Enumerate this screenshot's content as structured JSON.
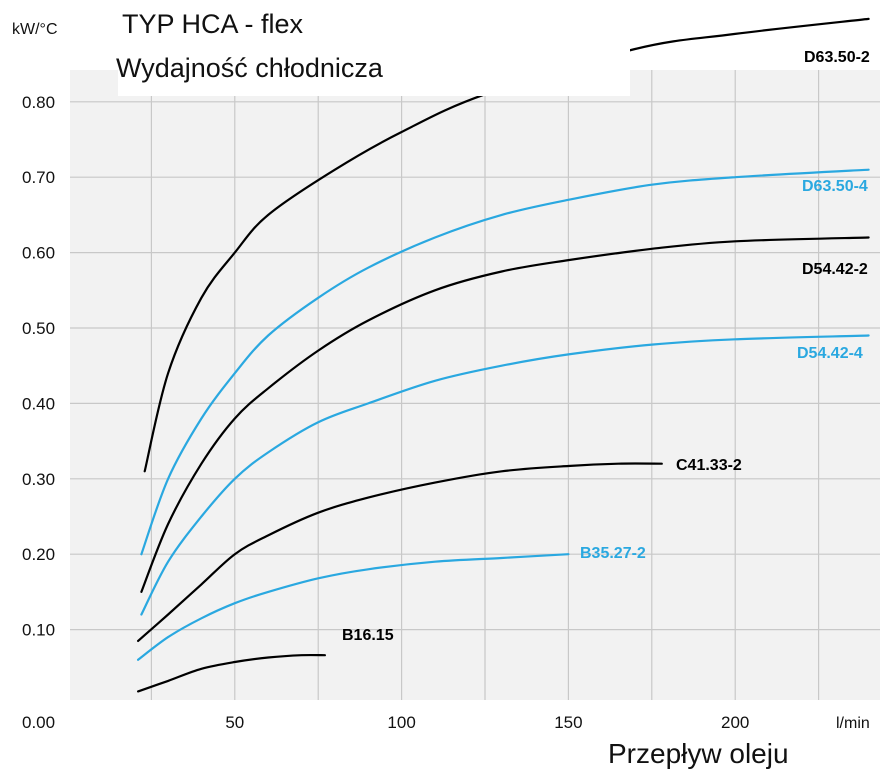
{
  "chart_data": {
    "type": "line",
    "title": [
      "TYP HCA - flex",
      "Wydajność chłodnicza"
    ],
    "xlabel": "Przepływ oleju",
    "xunit": "l/min",
    "yunit": "kW/°C",
    "xlim": [
      0,
      250
    ],
    "ylim": [
      0,
      0.85
    ],
    "xticks": [
      0,
      50,
      100,
      150,
      200
    ],
    "xtick_labels": [
      "0.00",
      "50",
      "100",
      "150",
      "200"
    ],
    "yticks": [
      0.1,
      0.2,
      0.3,
      0.4,
      0.5,
      0.6,
      0.7,
      0.8
    ],
    "ytick_labels": [
      "0.10",
      "0.20",
      "0.30",
      "0.40",
      "0.50",
      "0.60",
      "0.70",
      "0.80"
    ],
    "grid": true,
    "colors": {
      "black": "#000000",
      "blue": "#2aa8e0",
      "grid": "#c8c8c8",
      "plot_bg": "#f2f2f2"
    },
    "series": [
      {
        "name": "D63.50-2",
        "color": "#000000",
        "x": [
          23,
          30,
          40,
          50,
          60,
          80,
          100,
          125,
          170,
          200,
          240
        ],
        "y": [
          0.31,
          0.44,
          0.54,
          0.6,
          0.65,
          0.71,
          0.76,
          0.81,
          0.87,
          0.89,
          0.91
        ]
      },
      {
        "name": "D63.50-4",
        "color": "#2aa8e0",
        "x": [
          22,
          30,
          40,
          50,
          60,
          75,
          90,
          110,
          130,
          150,
          175,
          200,
          240
        ],
        "y": [
          0.2,
          0.3,
          0.38,
          0.44,
          0.49,
          0.54,
          0.58,
          0.62,
          0.65,
          0.67,
          0.69,
          0.7,
          0.71
        ]
      },
      {
        "name": "D54.42-2",
        "color": "#000000",
        "x": [
          22,
          30,
          40,
          50,
          60,
          75,
          90,
          110,
          130,
          150,
          175,
          200,
          240
        ],
        "y": [
          0.15,
          0.24,
          0.32,
          0.38,
          0.42,
          0.47,
          0.51,
          0.55,
          0.575,
          0.59,
          0.605,
          0.615,
          0.62
        ]
      },
      {
        "name": "D54.42-4",
        "color": "#2aa8e0",
        "x": [
          22,
          30,
          40,
          50,
          60,
          75,
          90,
          110,
          130,
          150,
          175,
          200,
          240
        ],
        "y": [
          0.12,
          0.19,
          0.25,
          0.3,
          0.335,
          0.375,
          0.4,
          0.43,
          0.45,
          0.465,
          0.478,
          0.485,
          0.49
        ]
      },
      {
        "name": "C41.33-2",
        "color": "#000000",
        "x": [
          21,
          30,
          40,
          50,
          60,
          75,
          90,
          110,
          130,
          150,
          165,
          178
        ],
        "y": [
          0.085,
          0.12,
          0.16,
          0.2,
          0.225,
          0.255,
          0.275,
          0.295,
          0.31,
          0.317,
          0.32,
          0.32
        ]
      },
      {
        "name": "B35.27-2",
        "color": "#2aa8e0",
        "x": [
          21,
          30,
          40,
          50,
          60,
          75,
          90,
          110,
          130,
          150
        ],
        "y": [
          0.06,
          0.09,
          0.115,
          0.135,
          0.15,
          0.168,
          0.18,
          0.19,
          0.195,
          0.2
        ]
      },
      {
        "name": "B16.15",
        "color": "#000000",
        "x": [
          21,
          30,
          40,
          50,
          60,
          70,
          77
        ],
        "y": [
          0.018,
          0.032,
          0.048,
          0.057,
          0.063,
          0.066,
          0.066
        ]
      }
    ]
  }
}
